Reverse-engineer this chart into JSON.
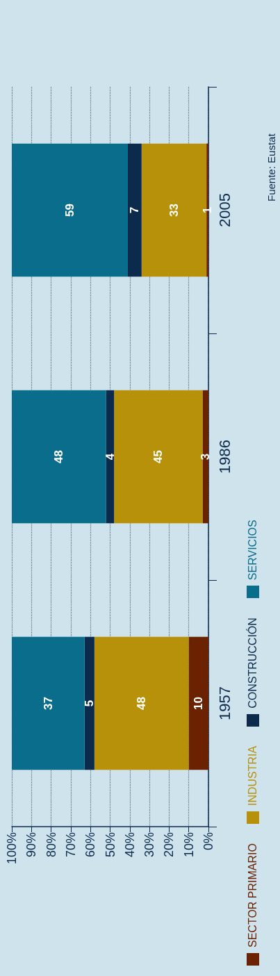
{
  "chart_data": {
    "type": "bar",
    "stacked": true,
    "orientation": "horizontal",
    "categories": [
      "2005",
      "1986",
      "1957"
    ],
    "series": [
      {
        "name": "SECTOR PRIMARIO",
        "color": "#6b2200",
        "values": [
          1,
          3,
          10
        ]
      },
      {
        "name": "INDUSTRIA",
        "color": "#b8910a",
        "values": [
          33,
          45,
          48
        ]
      },
      {
        "name": "CONSTRUCCIÓN",
        "color": "#0b2a4c",
        "values": [
          7,
          4,
          5
        ]
      },
      {
        "name": "SERVICIOS",
        "color": "#0a6d8b",
        "values": [
          59,
          48,
          37
        ]
      }
    ],
    "xlim": [
      100,
      0
    ],
    "xticks": [
      {
        "value": 100,
        "label": "100%"
      },
      {
        "value": 90,
        "label": "90%"
      },
      {
        "value": 80,
        "label": "80%"
      },
      {
        "value": 70,
        "label": "70%"
      },
      {
        "value": 60,
        "label": "60%"
      },
      {
        "value": 50,
        "label": "50%"
      },
      {
        "value": 40,
        "label": "40%"
      },
      {
        "value": 30,
        "label": "30%"
      },
      {
        "value": 20,
        "label": "20%"
      },
      {
        "value": 10,
        "label": "10%"
      },
      {
        "value": 0,
        "label": "0%"
      }
    ],
    "grid": "x",
    "data_labels": true,
    "legend": "right",
    "annotations": [
      "Fuente: Eustat"
    ]
  }
}
